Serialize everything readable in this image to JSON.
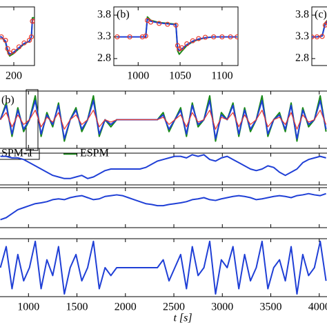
{
  "chart_data": [
    {
      "type": "line",
      "xlim": [
        100,
        220
      ],
      "ylim": [
        2.64,
        3.99
      ],
      "xticks": [
        200
      ],
      "x": [
        180,
        188,
        192,
        194,
        196,
        200,
        205,
        210,
        215,
        217,
        218,
        220
      ],
      "series": [
        {
          "color": "#1a8a1a",
          "values": [
            3.3,
            3.3,
            3.18,
            2.96,
            2.86,
            2.92,
            3.03,
            3.14,
            3.2,
            3.3,
            3.74,
            3.74
          ]
        },
        {
          "color": "#1f3fd6",
          "values": [
            3.3,
            3.3,
            3.2,
            3.0,
            2.9,
            2.95,
            3.05,
            3.15,
            3.2,
            3.3,
            3.7,
            3.7
          ]
        },
        {
          "color": "#e8392b",
          "marker": "o",
          "values": [
            3.3,
            3.3,
            3.22,
            3.03,
            2.93,
            2.97,
            3.07,
            3.16,
            3.22,
            3.3,
            3.66,
            3.66
          ]
        }
      ]
    },
    {
      "type": "line",
      "annotation": "(b)",
      "xlim": [
        971,
        1119
      ],
      "ylim": [
        2.64,
        3.99
      ],
      "xticks": [
        1000,
        1050,
        1100
      ],
      "yticks": [
        2.8,
        3.3,
        3.8
      ],
      "x": [
        975,
        990,
        1005,
        1009,
        1011,
        1015,
        1025,
        1035,
        1045,
        1047,
        1049,
        1052,
        1058,
        1065,
        1072,
        1080,
        1090,
        1100,
        1110,
        1118
      ],
      "series": [
        {
          "color": "#1a8a1a",
          "values": [
            3.3,
            3.3,
            3.3,
            3.3,
            3.76,
            3.68,
            3.63,
            3.61,
            3.59,
            2.98,
            2.9,
            2.97,
            3.1,
            3.19,
            3.24,
            3.28,
            3.3,
            3.3,
            3.3,
            3.3
          ]
        },
        {
          "color": "#1f3fd6",
          "values": [
            3.3,
            3.3,
            3.3,
            3.3,
            3.72,
            3.66,
            3.62,
            3.6,
            3.58,
            3.05,
            2.98,
            3.02,
            3.12,
            3.2,
            3.25,
            3.28,
            3.3,
            3.3,
            3.3,
            3.3
          ]
        },
        {
          "color": "#e8392b",
          "marker": "o",
          "values": [
            3.3,
            3.3,
            3.3,
            3.32,
            3.68,
            3.64,
            3.61,
            3.59,
            3.57,
            3.1,
            3.02,
            3.05,
            3.14,
            3.21,
            3.26,
            3.29,
            3.3,
            3.3,
            3.3,
            3.3
          ]
        }
      ]
    },
    {
      "type": "line",
      "annotation": "(c)",
      "xlim": [
        4205,
        4325
      ],
      "ylim": [
        2.64,
        3.99
      ],
      "yticks": [
        2.8,
        3.3,
        3.8
      ],
      "x": [
        4205,
        4210,
        4215,
        4218,
        4220
      ],
      "series": [
        {
          "color": "#1a8a1a",
          "values": [
            3.3,
            3.3,
            3.32,
            3.63,
            3.68
          ]
        },
        {
          "color": "#1f3fd6",
          "values": [
            3.3,
            3.3,
            3.32,
            3.6,
            3.65
          ]
        },
        {
          "color": "#e8392b",
          "marker": "o",
          "values": [
            3.3,
            3.3,
            3.31,
            3.57,
            3.62
          ]
        }
      ]
    },
    {
      "type": "line",
      "annotation": "(b)",
      "xlim": [
        706,
        4080
      ],
      "ylim": [
        2.7,
        3.9
      ],
      "xticks": [
        1000,
        1500,
        2000,
        2500,
        3000,
        3500,
        4000
      ],
      "x": [
        710,
        770,
        830,
        890,
        950,
        1010,
        1070,
        1130,
        1190,
        1250,
        1310,
        1370,
        1430,
        1490,
        1550,
        1610,
        1670,
        1730,
        1790,
        1850,
        1910,
        1970,
        2030,
        2090,
        2150,
        2210,
        2270,
        2330,
        2390,
        2450,
        2510,
        2570,
        2630,
        2690,
        2750,
        2810,
        2870,
        2930,
        2990,
        3050,
        3110,
        3170,
        3230,
        3290,
        3350,
        3410,
        3470,
        3530,
        3590,
        3650,
        3710,
        3770,
        3830,
        3890,
        3950,
        4010,
        4070
      ],
      "series": [
        {
          "name": "ESPM",
          "color": "#1a8a1a",
          "values": [
            3.3,
            3.65,
            2.95,
            3.55,
            3.05,
            3.3,
            3.8,
            2.95,
            3.45,
            3.15,
            3.65,
            2.85,
            3.3,
            3.55,
            3.05,
            3.3,
            3.8,
            2.95,
            3.3,
            3.15,
            3.3,
            3.3,
            3.3,
            3.3,
            3.3,
            3.3,
            3.3,
            3.3,
            3.45,
            3.05,
            3.3,
            3.55,
            2.95,
            3.65,
            3.15,
            3.3,
            3.8,
            2.85,
            3.45,
            3.3,
            3.65,
            2.95,
            3.55,
            3.05,
            3.3,
            3.8,
            2.95,
            3.3,
            3.45,
            3.05,
            3.65,
            2.85,
            3.55,
            3.15,
            3.3,
            3.8,
            3.05
          ]
        },
        {
          "color": "#1f3fd6",
          "values": [
            3.3,
            3.6,
            3.0,
            3.5,
            3.1,
            3.3,
            3.7,
            3.0,
            3.4,
            3.2,
            3.6,
            2.9,
            3.3,
            3.5,
            3.1,
            3.3,
            3.7,
            3.0,
            3.3,
            3.2,
            3.3,
            3.3,
            3.3,
            3.3,
            3.3,
            3.3,
            3.3,
            3.3,
            3.4,
            3.1,
            3.3,
            3.5,
            3.0,
            3.6,
            3.2,
            3.3,
            3.7,
            2.9,
            3.4,
            3.3,
            3.6,
            3.0,
            3.5,
            3.1,
            3.3,
            3.7,
            3.0,
            3.3,
            3.4,
            3.1,
            3.6,
            2.9,
            3.5,
            3.2,
            3.3,
            3.7,
            3.1
          ]
        },
        {
          "name": "SPM-T",
          "color": "#e8392b",
          "values": [
            3.3,
            3.45,
            3.15,
            3.4,
            3.2,
            3.3,
            3.5,
            3.15,
            3.35,
            3.25,
            3.45,
            3.1,
            3.3,
            3.4,
            3.2,
            3.3,
            3.5,
            3.15,
            3.3,
            3.25,
            3.3,
            3.3,
            3.3,
            3.3,
            3.3,
            3.3,
            3.3,
            3.3,
            3.35,
            3.2,
            3.3,
            3.4,
            3.15,
            3.45,
            3.25,
            3.3,
            3.5,
            3.1,
            3.35,
            3.3,
            3.45,
            3.15,
            3.4,
            3.2,
            3.3,
            3.5,
            3.15,
            3.3,
            3.35,
            3.2,
            3.45,
            3.1,
            3.4,
            3.25,
            3.3,
            3.5,
            3.2
          ]
        }
      ]
    },
    {
      "type": "line",
      "xlim": [
        706,
        4080
      ],
      "ylim": [
        0,
        1
      ],
      "xticks": [
        1000,
        1500,
        2000,
        2500,
        3000,
        3500,
        4000
      ],
      "x": [
        710,
        770,
        830,
        890,
        950,
        1010,
        1070,
        1130,
        1190,
        1250,
        1310,
        1370,
        1430,
        1490,
        1550,
        1610,
        1670,
        1730,
        1790,
        1850,
        1910,
        1970,
        2030,
        2090,
        2150,
        2210,
        2270,
        2330,
        2390,
        2450,
        2510,
        2570,
        2630,
        2690,
        2750,
        2810,
        2870,
        2930,
        2990,
        3050,
        3110,
        3170,
        3230,
        3290,
        3350,
        3410,
        3470,
        3530,
        3590,
        3650,
        3710,
        3770,
        3830,
        3890,
        3950,
        4010,
        4070
      ],
      "series": [
        {
          "color": "#1f3fd6",
          "values": [
            0.9,
            0.9,
            0.85,
            0.85,
            0.8,
            0.7,
            0.6,
            0.5,
            0.4,
            0.3,
            0.25,
            0.2,
            0.2,
            0.25,
            0.3,
            0.2,
            0.25,
            0.35,
            0.45,
            0.5,
            0.5,
            0.5,
            0.5,
            0.5,
            0.5,
            0.55,
            0.65,
            0.75,
            0.8,
            0.85,
            0.9,
            0.9,
            0.85,
            0.95,
            0.9,
            0.95,
            0.8,
            0.75,
            0.85,
            0.9,
            0.8,
            0.7,
            0.6,
            0.5,
            0.45,
            0.5,
            0.6,
            0.55,
            0.4,
            0.3,
            0.4,
            0.5,
            0.7,
            0.8,
            0.85,
            0.9,
            0.85
          ]
        }
      ]
    },
    {
      "type": "line",
      "xlim": [
        706,
        4080
      ],
      "ylim": [
        0,
        1
      ],
      "xticks": [
        1000,
        1500,
        2000,
        2500,
        3000,
        3500,
        4000
      ],
      "x": [
        710,
        770,
        830,
        890,
        950,
        1010,
        1070,
        1130,
        1190,
        1250,
        1310,
        1370,
        1430,
        1490,
        1550,
        1610,
        1670,
        1730,
        1790,
        1850,
        1910,
        1970,
        2030,
        2090,
        2150,
        2210,
        2270,
        2330,
        2390,
        2450,
        2510,
        2570,
        2630,
        2690,
        2750,
        2810,
        2870,
        2930,
        2990,
        3050,
        3110,
        3170,
        3230,
        3290,
        3350,
        3410,
        3470,
        3530,
        3590,
        3650,
        3710,
        3770,
        3830,
        3890,
        3950,
        4010,
        4070
      ],
      "series": [
        {
          "color": "#1f3fd6",
          "values": [
            0.2,
            0.25,
            0.35,
            0.45,
            0.5,
            0.55,
            0.6,
            0.62,
            0.65,
            0.7,
            0.72,
            0.7,
            0.75,
            0.78,
            0.8,
            0.75,
            0.7,
            0.72,
            0.78,
            0.8,
            0.82,
            0.8,
            0.75,
            0.7,
            0.65,
            0.6,
            0.58,
            0.55,
            0.55,
            0.58,
            0.6,
            0.62,
            0.65,
            0.7,
            0.72,
            0.75,
            0.7,
            0.68,
            0.72,
            0.75,
            0.78,
            0.8,
            0.78,
            0.75,
            0.7,
            0.72,
            0.75,
            0.78,
            0.8,
            0.78,
            0.75,
            0.8,
            0.82,
            0.85,
            0.82,
            0.8,
            0.85
          ]
        }
      ]
    },
    {
      "type": "line",
      "xlim": [
        706,
        4080
      ],
      "ylim": [
        -1.1,
        1.1
      ],
      "xticks": [
        1000,
        1500,
        2000,
        2500,
        3000,
        3500,
        4000
      ],
      "xlabel": "t [s]",
      "x": [
        710,
        770,
        830,
        890,
        950,
        1010,
        1070,
        1130,
        1190,
        1250,
        1310,
        1370,
        1430,
        1490,
        1550,
        1610,
        1670,
        1730,
        1790,
        1850,
        1910,
        1970,
        2030,
        2090,
        2150,
        2210,
        2270,
        2330,
        2390,
        2450,
        2510,
        2570,
        2630,
        2690,
        2750,
        2810,
        2870,
        2930,
        2990,
        3050,
        3110,
        3170,
        3230,
        3290,
        3350,
        3410,
        3470,
        3530,
        3590,
        3650,
        3710,
        3770,
        3830,
        3890,
        3950,
        4010,
        4070
      ],
      "series": [
        {
          "color": "#1f3fd6",
          "values": [
            0,
            0.8,
            -0.8,
            0.5,
            -0.5,
            0,
            1,
            -0.8,
            0.3,
            -0.3,
            0.8,
            -1,
            0,
            0.5,
            -0.5,
            0,
            1,
            -0.8,
            0,
            -0.3,
            0,
            0,
            0,
            0,
            0,
            0,
            0,
            0,
            0.3,
            -0.5,
            0,
            0.5,
            -0.8,
            0.8,
            -0.3,
            0,
            1,
            -1,
            0.3,
            0,
            0.8,
            -0.8,
            0.5,
            -0.5,
            0,
            1,
            -0.8,
            0,
            0.3,
            -0.5,
            0.8,
            -1,
            0.5,
            -0.3,
            0,
            1,
            -0.5
          ]
        }
      ]
    }
  ]
}
